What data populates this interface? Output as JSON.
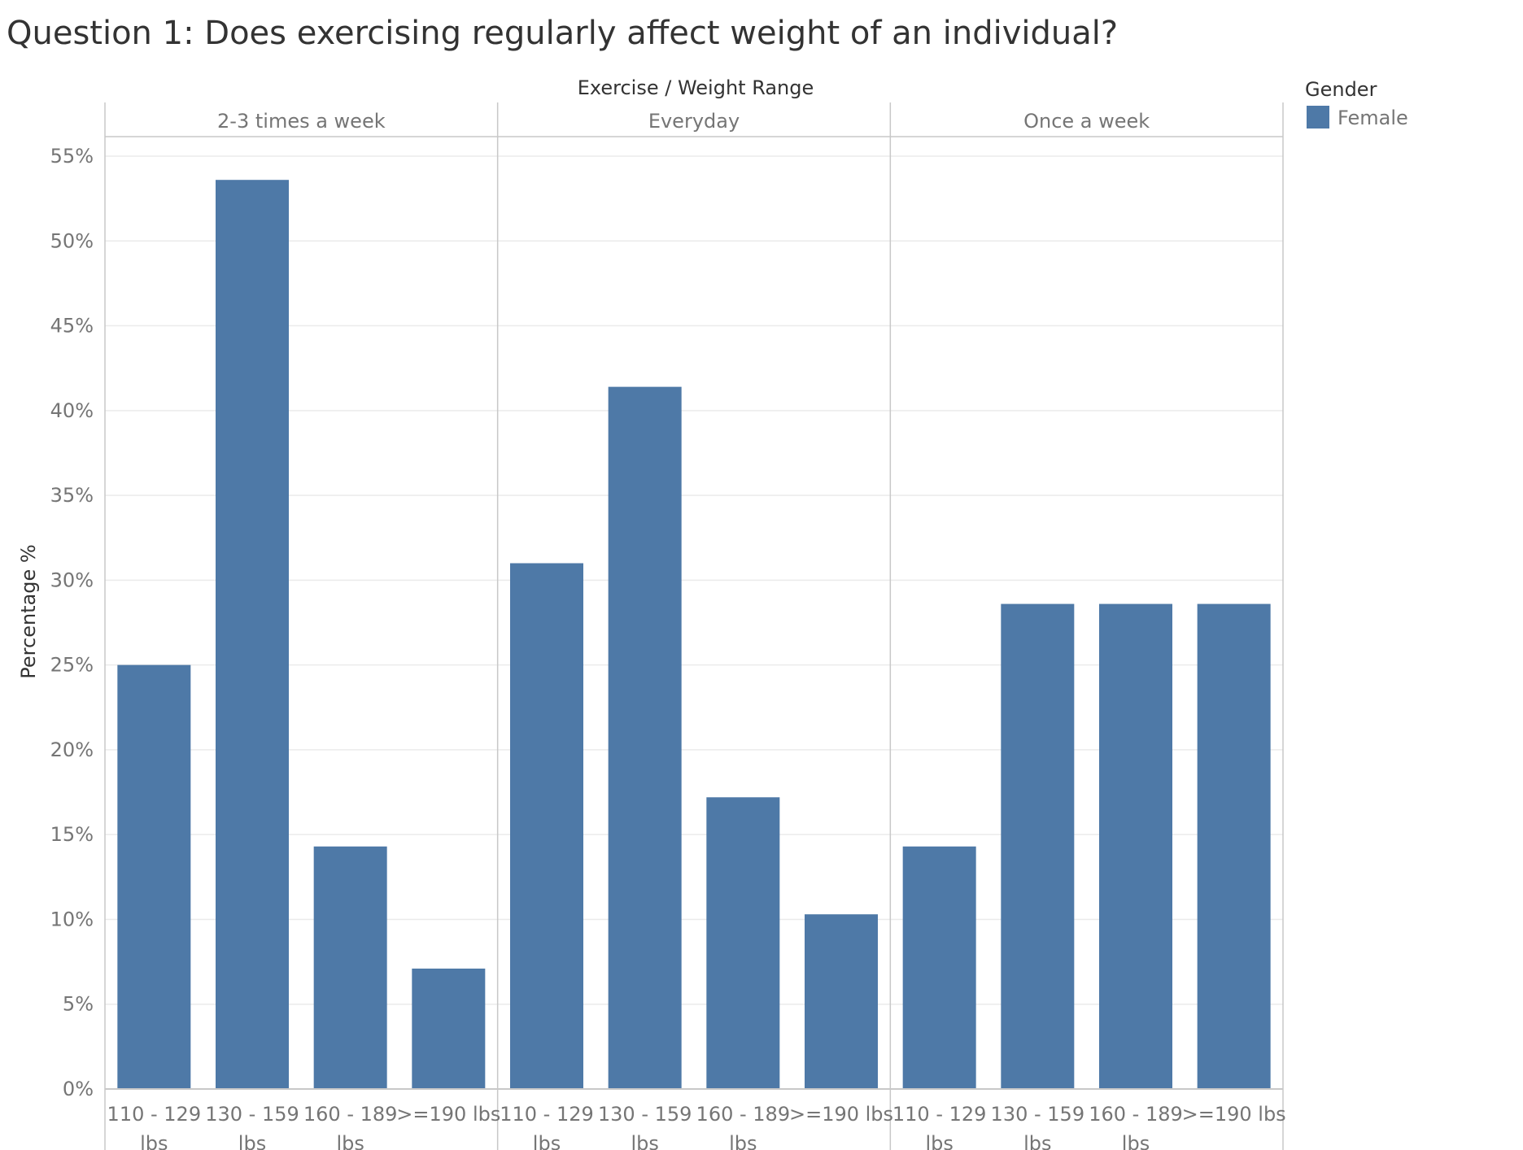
{
  "chart_data": {
    "type": "bar",
    "title": "Question 1: Does exercising regularly affect weight of an individual?",
    "column_header": "Exercise / Weight Range",
    "ylabel": "Percentage %",
    "ylim": [
      0,
      57
    ],
    "yticks": [
      "0%",
      "5%",
      "10%",
      "15%",
      "20%",
      "25%",
      "30%",
      "35%",
      "40%",
      "45%",
      "50%",
      "55%"
    ],
    "ytick_values": [
      0,
      5,
      10,
      15,
      20,
      25,
      30,
      35,
      40,
      45,
      50,
      55
    ],
    "grid": true,
    "legend": {
      "title": "Gender",
      "placement": "top-right",
      "items": [
        {
          "label": "Female",
          "color": "#4e79a7"
        }
      ]
    },
    "categories": [
      [
        "110 - 129",
        "lbs"
      ],
      [
        "130 - 159",
        "lbs"
      ],
      [
        "160 - 189",
        "lbs"
      ],
      [
        ">=190 lbs"
      ]
    ],
    "panels": [
      {
        "name": "2-3 times a week",
        "values": [
          25.0,
          53.6,
          14.3,
          7.1
        ]
      },
      {
        "name": "Everyday",
        "values": [
          31.0,
          41.4,
          17.2,
          10.3
        ]
      },
      {
        "name": "Once a week",
        "values": [
          14.3,
          28.6,
          28.6,
          28.6
        ]
      }
    ],
    "colors": {
      "bar": "#4e79a7",
      "grid": "#ebebeb",
      "divider": "#c8c8c8",
      "tick_text": "#757575",
      "label_text": "#333333",
      "title_text": "#333333"
    }
  }
}
